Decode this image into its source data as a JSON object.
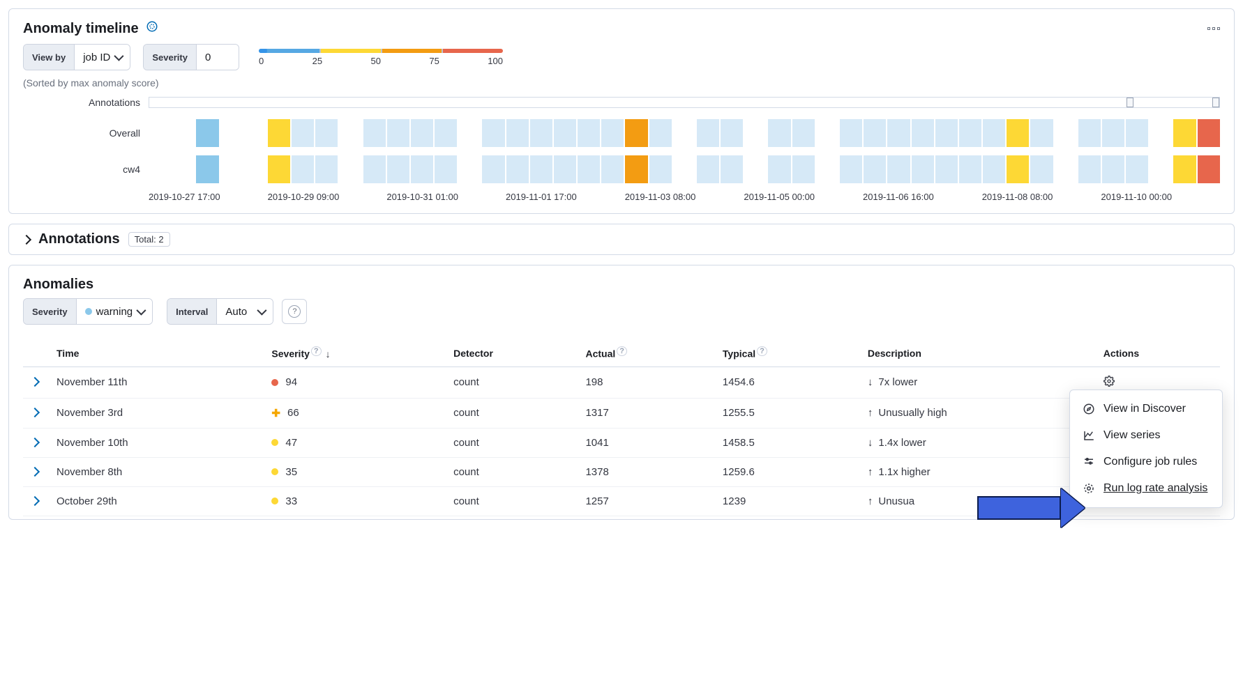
{
  "colors": {
    "sev_blue": "#8bc8ea",
    "sev_lightblue": "#d6e9f7",
    "sev_yellow": "#fdd835",
    "sev_orange": "#f39c12",
    "sev_red": "#e7664c",
    "sev_critical_dot": "#e7664c",
    "sev_major_plus": "#f5a700",
    "sev_minor_dot": "#fdd835",
    "sev_warning_dot": "#8bc8ea",
    "scale_blue": "#56a8e3",
    "scale_yellow": "#fdd835",
    "scale_orange": "#f39c12",
    "scale_red": "#e7664c"
  },
  "timeline": {
    "title": "Anomaly timeline",
    "view_by_label": "View by",
    "view_by_value": "job ID",
    "severity_label": "Severity",
    "severity_value": "0",
    "scale_ticks": [
      "0",
      "25",
      "50",
      "75",
      "100"
    ],
    "sort_note": "(Sorted by max anomaly score)",
    "row_labels": [
      "Annotations",
      "Overall",
      "cw4"
    ],
    "xaxis": [
      "2019-10-27 17:00",
      "2019-10-29 09:00",
      "2019-10-31 01:00",
      "2019-11-01 17:00",
      "2019-11-03 08:00",
      "2019-11-05 00:00",
      "2019-11-06 16:00",
      "2019-11-08 08:00",
      "2019-11-10 00:00"
    ],
    "n_cells": 45,
    "overall_cells": [
      "#fff",
      "#fff",
      "#8bc8ea",
      "#fff",
      "#fff",
      "#fdd835",
      "#d6e9f7",
      "#d6e9f7",
      "#fff",
      "#d6e9f7",
      "#d6e9f7",
      "#d6e9f7",
      "#d6e9f7",
      "#fff",
      "#d6e9f7",
      "#d6e9f7",
      "#d6e9f7",
      "#d6e9f7",
      "#d6e9f7",
      "#d6e9f7",
      "#f39c12",
      "#d6e9f7",
      "#fff",
      "#d6e9f7",
      "#d6e9f7",
      "#fff",
      "#d6e9f7",
      "#d6e9f7",
      "#fff",
      "#d6e9f7",
      "#d6e9f7",
      "#d6e9f7",
      "#d6e9f7",
      "#d6e9f7",
      "#d6e9f7",
      "#d6e9f7",
      "#fdd835",
      "#d6e9f7",
      "#fff",
      "#d6e9f7",
      "#d6e9f7",
      "#d6e9f7",
      "#fff",
      "#fdd835",
      "#e7664c"
    ],
    "cw4_cells": [
      "#fff",
      "#fff",
      "#8bc8ea",
      "#fff",
      "#fff",
      "#fdd835",
      "#d6e9f7",
      "#d6e9f7",
      "#fff",
      "#d6e9f7",
      "#d6e9f7",
      "#d6e9f7",
      "#d6e9f7",
      "#fff",
      "#d6e9f7",
      "#d6e9f7",
      "#d6e9f7",
      "#d6e9f7",
      "#d6e9f7",
      "#d6e9f7",
      "#f39c12",
      "#d6e9f7",
      "#fff",
      "#d6e9f7",
      "#d6e9f7",
      "#fff",
      "#d6e9f7",
      "#d6e9f7",
      "#fff",
      "#d6e9f7",
      "#d6e9f7",
      "#d6e9f7",
      "#d6e9f7",
      "#d6e9f7",
      "#d6e9f7",
      "#d6e9f7",
      "#fdd835",
      "#d6e9f7",
      "#fff",
      "#d6e9f7",
      "#d6e9f7",
      "#d6e9f7",
      "#fff",
      "#fdd835",
      "#e7664c"
    ]
  },
  "annotations": {
    "title": "Annotations",
    "total_label": "Total: 2"
  },
  "anomalies": {
    "title": "Anomalies",
    "severity_label": "Severity",
    "severity_value": "warning",
    "interval_label": "Interval",
    "interval_value": "Auto",
    "columns": {
      "time": "Time",
      "severity": "Severity",
      "detector": "Detector",
      "actual": "Actual",
      "typical": "Typical",
      "description": "Description",
      "actions": "Actions"
    },
    "rows": [
      {
        "time": "November 11th",
        "sev": 94,
        "sev_type": "critical",
        "detector": "count",
        "actual": "198",
        "typical": "1454.6",
        "dir": "down",
        "desc": "7x lower"
      },
      {
        "time": "November 3rd",
        "sev": 66,
        "sev_type": "major",
        "detector": "count",
        "actual": "1317",
        "typical": "1255.5",
        "dir": "up",
        "desc": "Unusually high"
      },
      {
        "time": "November 10th",
        "sev": 47,
        "sev_type": "minor",
        "detector": "count",
        "actual": "1041",
        "typical": "1458.5",
        "dir": "down",
        "desc": "1.4x lower"
      },
      {
        "time": "November 8th",
        "sev": 35,
        "sev_type": "minor",
        "detector": "count",
        "actual": "1378",
        "typical": "1259.6",
        "dir": "up",
        "desc": "1.1x higher"
      },
      {
        "time": "October 29th",
        "sev": 33,
        "sev_type": "minor",
        "detector": "count",
        "actual": "1257",
        "typical": "1239",
        "dir": "up",
        "desc": "Unusua"
      }
    ]
  },
  "popover": {
    "items": [
      {
        "label": "View in Discover",
        "icon": "compass"
      },
      {
        "label": "View series",
        "icon": "chart"
      },
      {
        "label": "Configure job rules",
        "icon": "sliders"
      },
      {
        "label": "Run log rate analysis",
        "icon": "target"
      }
    ]
  }
}
